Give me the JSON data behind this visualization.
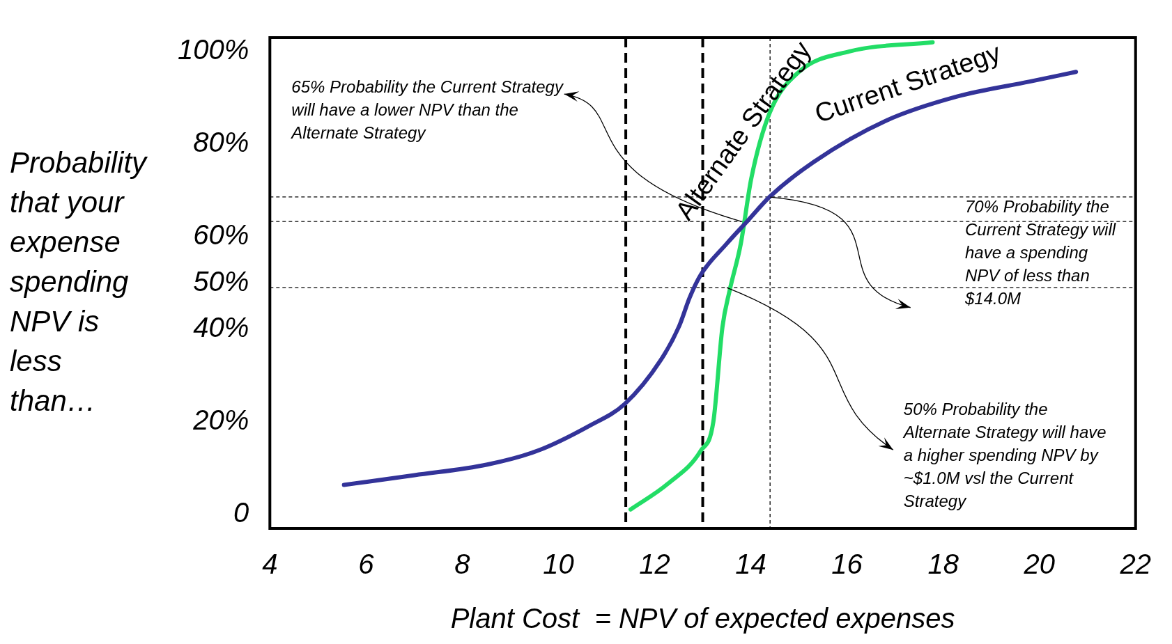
{
  "chart_data": {
    "type": "line",
    "xlabel": "Plant Cost  = NPV of expected expenses",
    "ylabel": "Probability that your expense spending NPV is less than…",
    "series": [
      {
        "name": "Current Strategy",
        "color": "#333399",
        "x": [
          5.54,
          7.01,
          8.52,
          9.57,
          10.63,
          11.38,
          12.13,
          12.51,
          12.73,
          12.96,
          13.49,
          13.94,
          14.39,
          15.3,
          16.8,
          18.3,
          19.8,
          20.76
        ],
        "values": [
          6.4,
          8.5,
          10.8,
          13.8,
          19.1,
          23.9,
          33.4,
          40.7,
          46.9,
          51.8,
          58.4,
          63.5,
          68.6,
          76.1,
          85,
          90.3,
          93.5,
          95.6
        ]
      },
      {
        "name": "Alternate Strategy",
        "color": "#22dd66",
        "x": [
          11.5,
          12.28,
          12.96,
          13.22,
          13.41,
          13.56,
          13.79,
          14.01,
          14.39,
          14.99,
          16.05,
          17.78
        ],
        "values": [
          1.1,
          6.7,
          13.8,
          20,
          40.5,
          48.4,
          58.4,
          72.6,
          86.7,
          95.5,
          100,
          102
        ]
      }
    ],
    "xlim": [
      4,
      22
    ],
    "xticks": [
      4,
      6,
      8,
      10,
      12,
      14,
      16,
      18,
      20,
      22
    ],
    "ylim": [
      -3,
      103
    ],
    "yticks": [
      0,
      {
        "value": 20,
        "label": "20%"
      },
      {
        "value": 40,
        "label": "40%"
      },
      {
        "value": 50,
        "label": "50%"
      },
      {
        "value": 60,
        "label": "60%"
      },
      {
        "value": 80,
        "label": "80%"
      },
      {
        "value": 100,
        "label": "100%"
      }
    ],
    "ref_lines": [
      {
        "axis": "x",
        "value": 11.4,
        "line_style": "dashed",
        "color": "#000000"
      },
      {
        "axis": "x",
        "value": 13,
        "line_style": "dashed",
        "color": "#000000"
      },
      {
        "axis": "x",
        "value": 14.4,
        "line_style": "dotted",
        "color": "#000000"
      },
      {
        "axis": "y",
        "value": 68.6,
        "line_style": "dotted",
        "color": "#000000"
      },
      {
        "axis": "y",
        "value": 63.3,
        "line_style": "dotted",
        "color": "#000000"
      },
      {
        "axis": "y",
        "value": 49,
        "line_style": "dotted",
        "color": "#000000"
      }
    ],
    "annotations": [
      {
        "text": "65% Probability the Current Strategy will have a lower NPV than the Alternate Strategy",
        "x": 13.8,
        "y": 63.3
      },
      "70% Probability the Current Strategy will have a spending NPV of less than $14.0M",
      {
        "text": "50% Probability the Alternate Strategy will have a higher spending NPV by ~$1.0M vsl the Current Strategy",
        "x": 13.5,
        "y": 49
      }
    ],
    "grid": false,
    "legend": false,
    "marker": "none",
    "line_style": "solid"
  }
}
